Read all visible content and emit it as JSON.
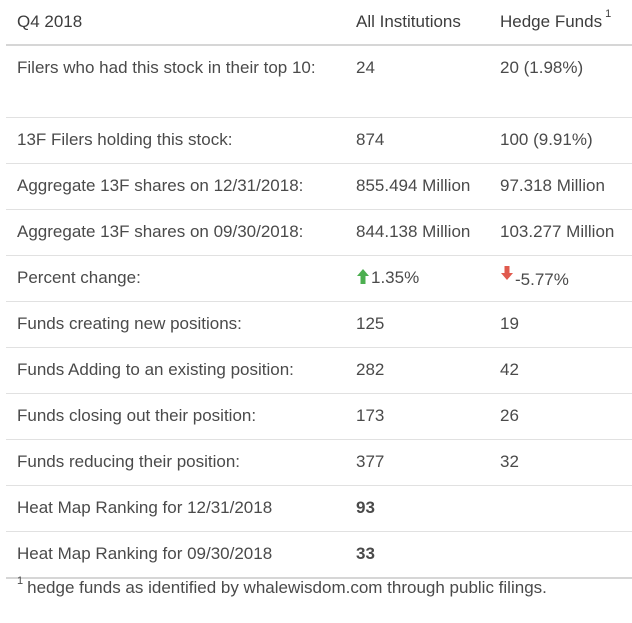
{
  "table": {
    "header": {
      "period": "Q4 2018",
      "col_all": "All Institutions",
      "col_hedge": "Hedge Funds",
      "col_hedge_footnote_marker": "1"
    },
    "rows": [
      {
        "label": "Filers who had this stock in their top 10:",
        "all": "24",
        "hedge": "20 (1.98%)"
      },
      {
        "label": "13F Filers holding this stock:",
        "all": "874",
        "hedge": "100 (9.91%)"
      },
      {
        "label": "Aggregate 13F shares on 12/31/2018:",
        "all": "855.494 Million",
        "hedge": "97.318 Million"
      },
      {
        "label": "Aggregate 13F shares on 09/30/2018:",
        "all": "844.138 Million",
        "hedge": "103.277 Million"
      }
    ],
    "percent_change": {
      "label": "Percent change:",
      "all": "1.35%",
      "all_direction": "up",
      "all_icon": "arrow-up-icon",
      "hedge": "-5.77%",
      "hedge_direction": "down",
      "hedge_icon": "arrow-down-icon",
      "up_color": "#4caf50",
      "down_color": "#e05a4e"
    },
    "rows2": [
      {
        "label": "Funds creating new positions:",
        "all": "125",
        "hedge": "19"
      },
      {
        "label": "Funds Adding to an existing position:",
        "all": "282",
        "hedge": "42"
      },
      {
        "label": "Funds closing out their position:",
        "all": "173",
        "hedge": "26"
      },
      {
        "label": "Funds reducing their position:",
        "all": "377",
        "hedge": "32"
      }
    ],
    "heat_map": [
      {
        "label": "Heat Map Ranking for 12/31/2018",
        "all": "93",
        "hedge": ""
      },
      {
        "label": "Heat Map Ranking for 09/30/2018",
        "all": "33",
        "hedge": ""
      }
    ],
    "rank_color": "#2e9e84"
  },
  "footnote": {
    "marker": "1",
    "text": "hedge funds as identified by whalewisdom.com through public filings."
  }
}
